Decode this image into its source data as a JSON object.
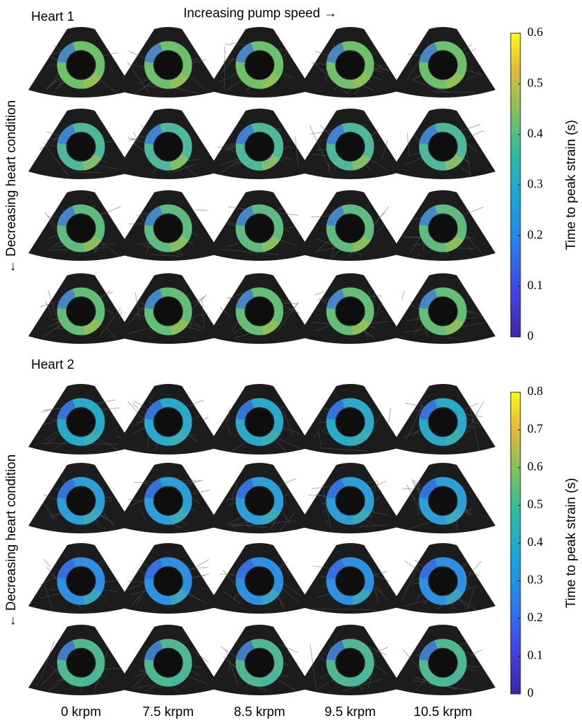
{
  "header": {
    "direction_label": "Increasing pump speed →"
  },
  "panels": [
    {
      "title": "Heart 1",
      "row_label": "← Decreasing heart condition",
      "colorbar": {
        "label": "Time to peak strain (s)",
        "ticks": [
          0,
          0.1,
          0.2,
          0.3,
          0.4,
          0.5,
          0.6
        ]
      }
    },
    {
      "title": "Heart 2",
      "row_label": "← Decreasing heart condition",
      "colorbar": {
        "label": "Time to peak strain (s)",
        "ticks": [
          0,
          0.1,
          0.2,
          0.3,
          0.4,
          0.5,
          0.6,
          0.7,
          0.8
        ]
      }
    }
  ],
  "columns": [
    "0 krpm",
    "7.5 krpm",
    "8.5 krpm",
    "9.5 krpm",
    "10.5 krpm"
  ]
}
